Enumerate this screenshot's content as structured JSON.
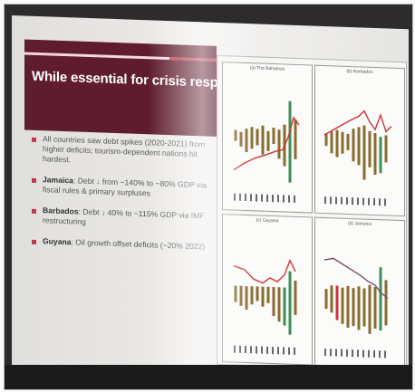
{
  "slide": {
    "title": "While essential for crisis response...",
    "bullets": [
      {
        "bold": "",
        "text": "All countries saw debt spikes (2020-2021) from higher deficits; tourism-dependent nations hit hardest."
      },
      {
        "bold": "Jamaica",
        "text": ": Debt ↓ from ~140% to ~80% GDP via fiscal rules & primary surpluses"
      },
      {
        "bold": "Barbados",
        "text": ": Debt ↓ 40% to ~115% GDP via IMF restructuring"
      },
      {
        "bold": "Guyana",
        "text": ": Oil growth offset deficits (~20% 2022)"
      }
    ]
  },
  "figure": {
    "panels": [
      {
        "label": "(a) The Bahamas"
      },
      {
        "label": "(b) Barbados"
      },
      {
        "label": "(c) Guyana"
      },
      {
        "label": "(d) Jamaica"
      }
    ]
  },
  "colors": {
    "title_band": "#5e1c2e",
    "accent": "#c2374d",
    "line": "#d1313a",
    "bar_a": "#8a6b2f",
    "bar_b": "#3d8e5a"
  }
}
